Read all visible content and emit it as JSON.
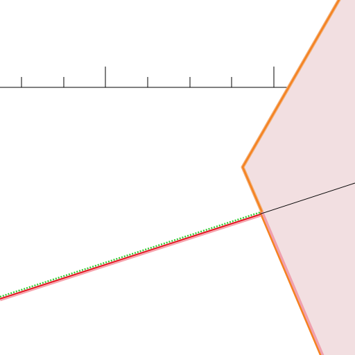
{
  "diagram": {
    "elements": [
      "axis-ruler",
      "filled-polygon-region",
      "black-line",
      "red-line",
      "green-dotted-line"
    ],
    "colors": {
      "polygon_fill": "#f2dfe1",
      "polygon_stroke_outer": "#f2b07a",
      "polygon_stroke_inner": "#f58220",
      "polygon_stroke_lower_pink": "#f0a0ad",
      "axis": "#000000",
      "black_line": "#000000",
      "red_line": "#e0000a",
      "pink_line_halo": "#f6a3ad",
      "green_dots": "#33cc33"
    },
    "icons": []
  }
}
